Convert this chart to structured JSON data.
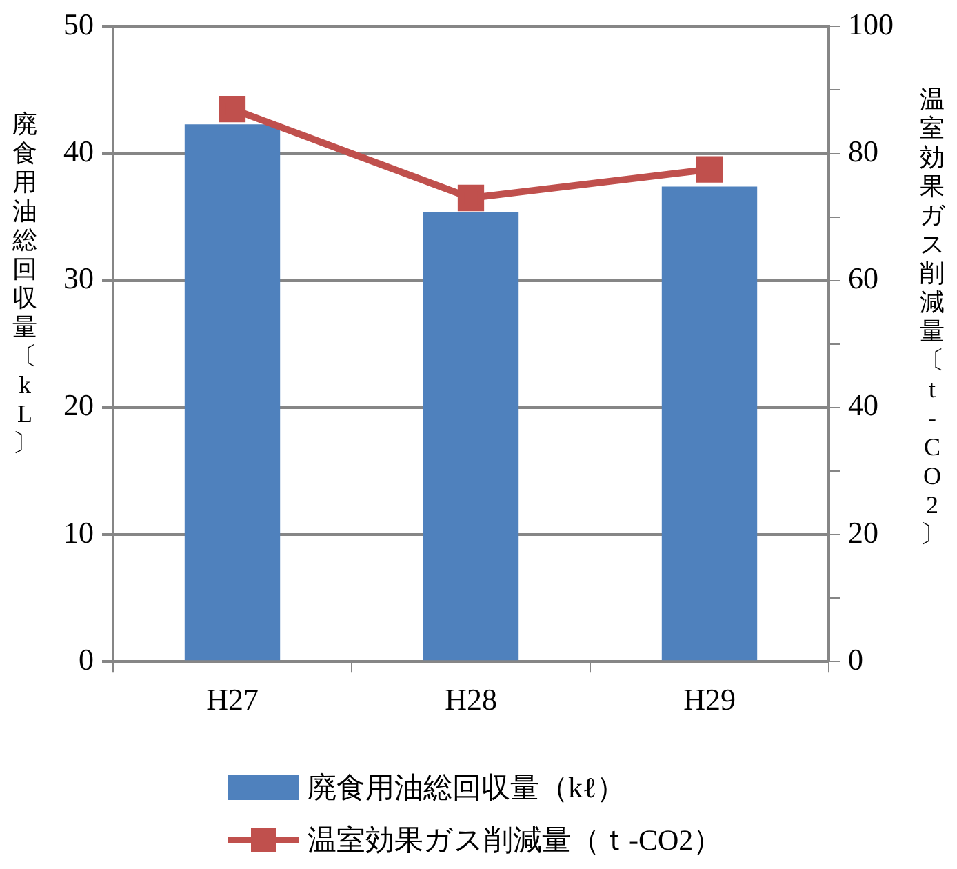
{
  "chart_data": {
    "type": "bar",
    "categories": [
      "H27",
      "H28",
      "H29"
    ],
    "ylabel": "廃食用油総回収量〔kL〕",
    "y2label": "温室効果ガス削減量〔t-CO2〕",
    "series": [
      {
        "name": "廃食用油総回収量（kℓ）",
        "color": "#4f81bd",
        "values": [
          42.3,
          35.4,
          37.4
        ]
      },
      {
        "name": "温室効果ガス削減量（ｔ-CO2）",
        "type": "line",
        "axis": "y2",
        "color": "#c0504d",
        "marker": "square",
        "values": [
          87,
          73,
          77.5
        ]
      }
    ],
    "ylim": [
      0,
      50
    ],
    "yticks": [
      0,
      10,
      20,
      30,
      40,
      50
    ],
    "y2lim": [
      0,
      100
    ],
    "y2ticks": [
      0,
      {
        "value": 10,
        "label": null
      },
      20,
      {
        "value": 30,
        "label": null
      },
      40,
      {
        "value": 50,
        "label": null
      },
      60,
      {
        "value": 70,
        "label": null
      },
      80,
      {
        "value": 90,
        "label": null
      },
      100
    ],
    "grid": "y",
    "legend": "bottom"
  }
}
